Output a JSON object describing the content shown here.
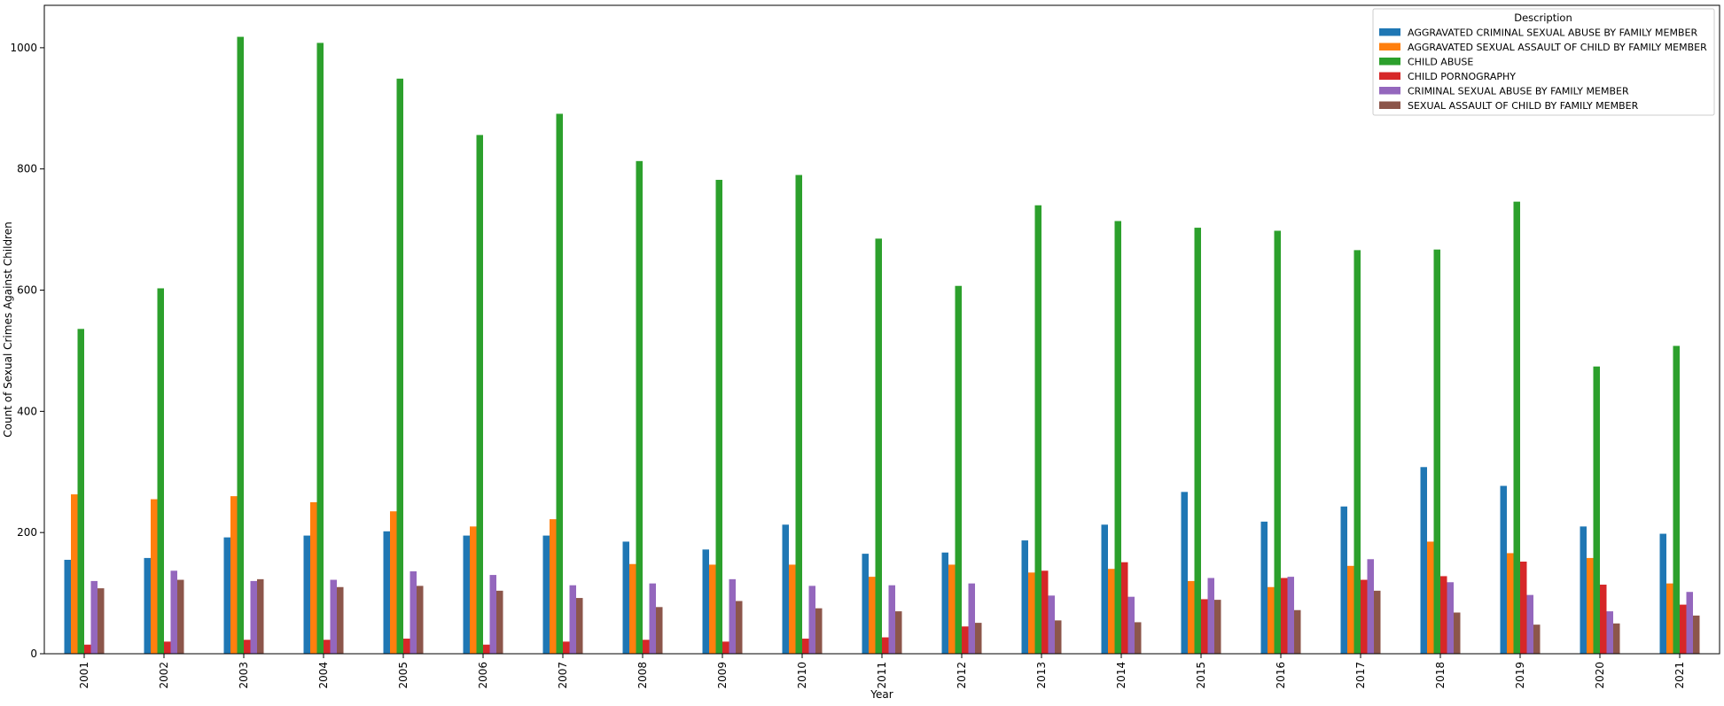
{
  "chart_data": {
    "type": "bar",
    "xlabel": "Year",
    "ylabel": "Count of Sexual Crimes Against Children",
    "ylim": [
      0,
      1070
    ],
    "yticks": [
      0,
      200,
      400,
      600,
      800,
      1000
    ],
    "grid": false,
    "legend": {
      "title": "Description",
      "placement": "top-right"
    },
    "categories": [
      "2001",
      "2002",
      "2003",
      "2004",
      "2005",
      "2006",
      "2007",
      "2008",
      "2009",
      "2010",
      "2011",
      "2012",
      "2013",
      "2014",
      "2015",
      "2016",
      "2017",
      "2018",
      "2019",
      "2020",
      "2021"
    ],
    "series": [
      {
        "name": "AGGRAVATED CRIMINAL SEXUAL ABUSE BY FAMILY MEMBER",
        "color": "#1f77b4",
        "values": [
          155,
          158,
          192,
          195,
          202,
          195,
          195,
          185,
          172,
          213,
          165,
          167,
          187,
          213,
          267,
          218,
          243,
          308,
          277,
          210,
          198
        ]
      },
      {
        "name": "AGGRAVATED SEXUAL ASSAULT OF CHILD BY FAMILY MEMBER",
        "color": "#ff7f0e",
        "values": [
          263,
          255,
          260,
          250,
          235,
          210,
          222,
          148,
          147,
          147,
          127,
          147,
          134,
          140,
          120,
          110,
          145,
          185,
          166,
          158,
          116
        ]
      },
      {
        "name": "CHILD ABUSE",
        "color": "#2ca02c",
        "values": [
          536,
          603,
          1018,
          1008,
          949,
          856,
          891,
          813,
          782,
          790,
          685,
          607,
          740,
          714,
          703,
          698,
          666,
          667,
          746,
          474,
          508
        ]
      },
      {
        "name": "CHILD PORNOGRAPHY",
        "color": "#d62728",
        "values": [
          15,
          20,
          23,
          23,
          25,
          15,
          20,
          23,
          20,
          25,
          27,
          45,
          137,
          151,
          90,
          125,
          122,
          128,
          152,
          114,
          81
        ]
      },
      {
        "name": "CRIMINAL SEXUAL ABUSE BY FAMILY MEMBER",
        "color": "#9467bd",
        "values": [
          120,
          137,
          120,
          122,
          136,
          130,
          113,
          116,
          123,
          112,
          113,
          116,
          96,
          94,
          125,
          127,
          156,
          118,
          97,
          70,
          102
        ]
      },
      {
        "name": "SEXUAL ASSAULT OF CHILD BY FAMILY MEMBER",
        "color": "#8c564b",
        "values": [
          108,
          122,
          123,
          110,
          112,
          104,
          92,
          77,
          87,
          75,
          70,
          51,
          55,
          52,
          89,
          72,
          104,
          68,
          48,
          50,
          63
        ]
      }
    ]
  }
}
